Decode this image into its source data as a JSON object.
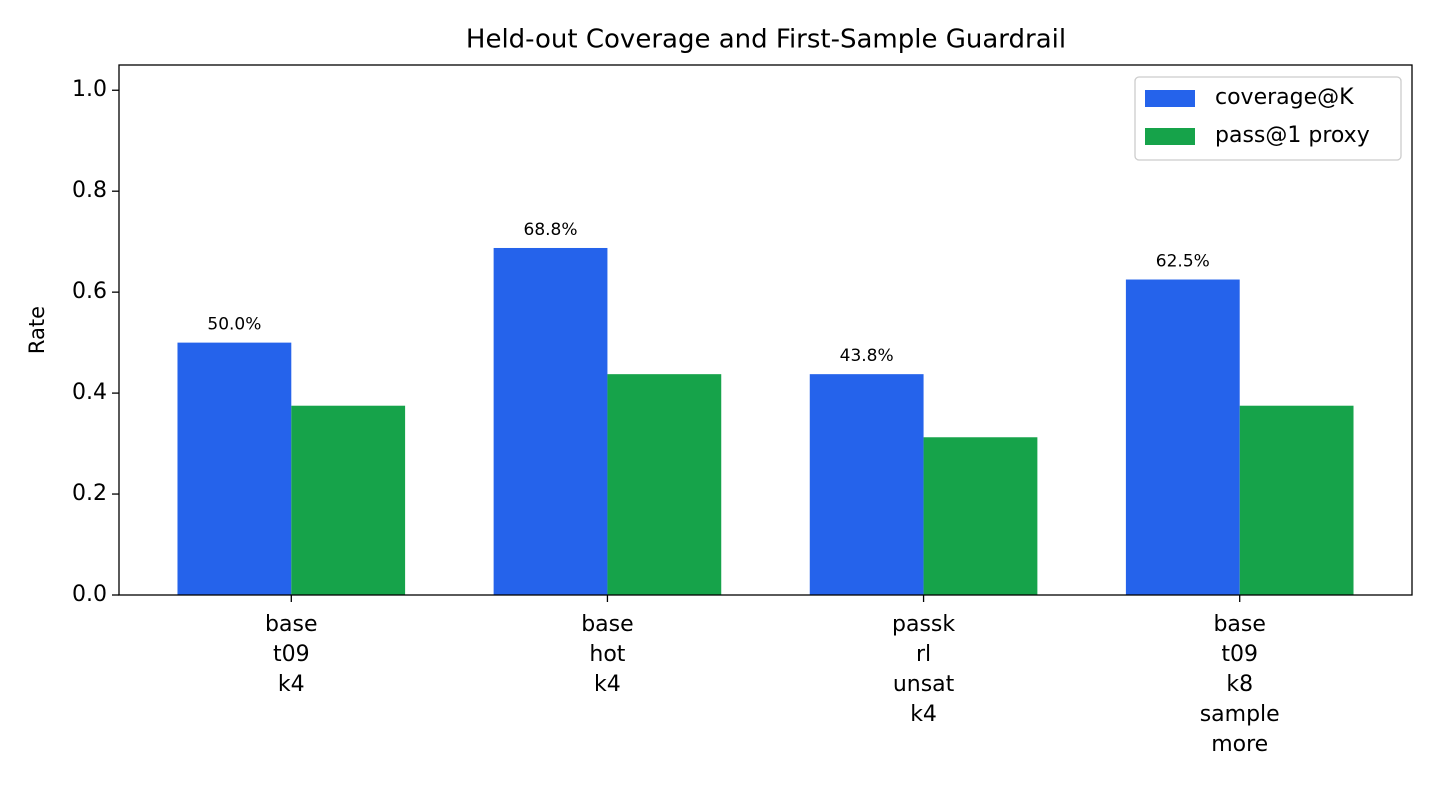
{
  "chart_data": {
    "type": "bar",
    "title": "Held-out Coverage and First-Sample Guardrail",
    "y_label": "Rate",
    "categories": [
      "base\nt09\nk4",
      "base\nhot\nk4",
      "passk\nrl\nunsat\nk4",
      "base\nt09\nk8\nsample\nmore"
    ],
    "series": [
      {
        "name": "coverage@K",
        "color": "#2563eb",
        "values": [
          0.5,
          0.6875,
          0.4375,
          0.625
        ],
        "value_labels": [
          "50.0%",
          "68.8%",
          "43.8%",
          "62.5%"
        ]
      },
      {
        "name": "pass@1 proxy",
        "color": "#16a34a",
        "values": [
          0.375,
          0.4375,
          0.3125,
          0.375
        ]
      }
    ],
    "ylim": [
      0,
      1.05
    ],
    "yticks": [
      {
        "value": 0,
        "label": "0.0"
      },
      0.2,
      0.4,
      0.6,
      0.8,
      {
        "value": 1,
        "label": "1.0"
      }
    ],
    "grid": false,
    "legend": "upper right"
  }
}
